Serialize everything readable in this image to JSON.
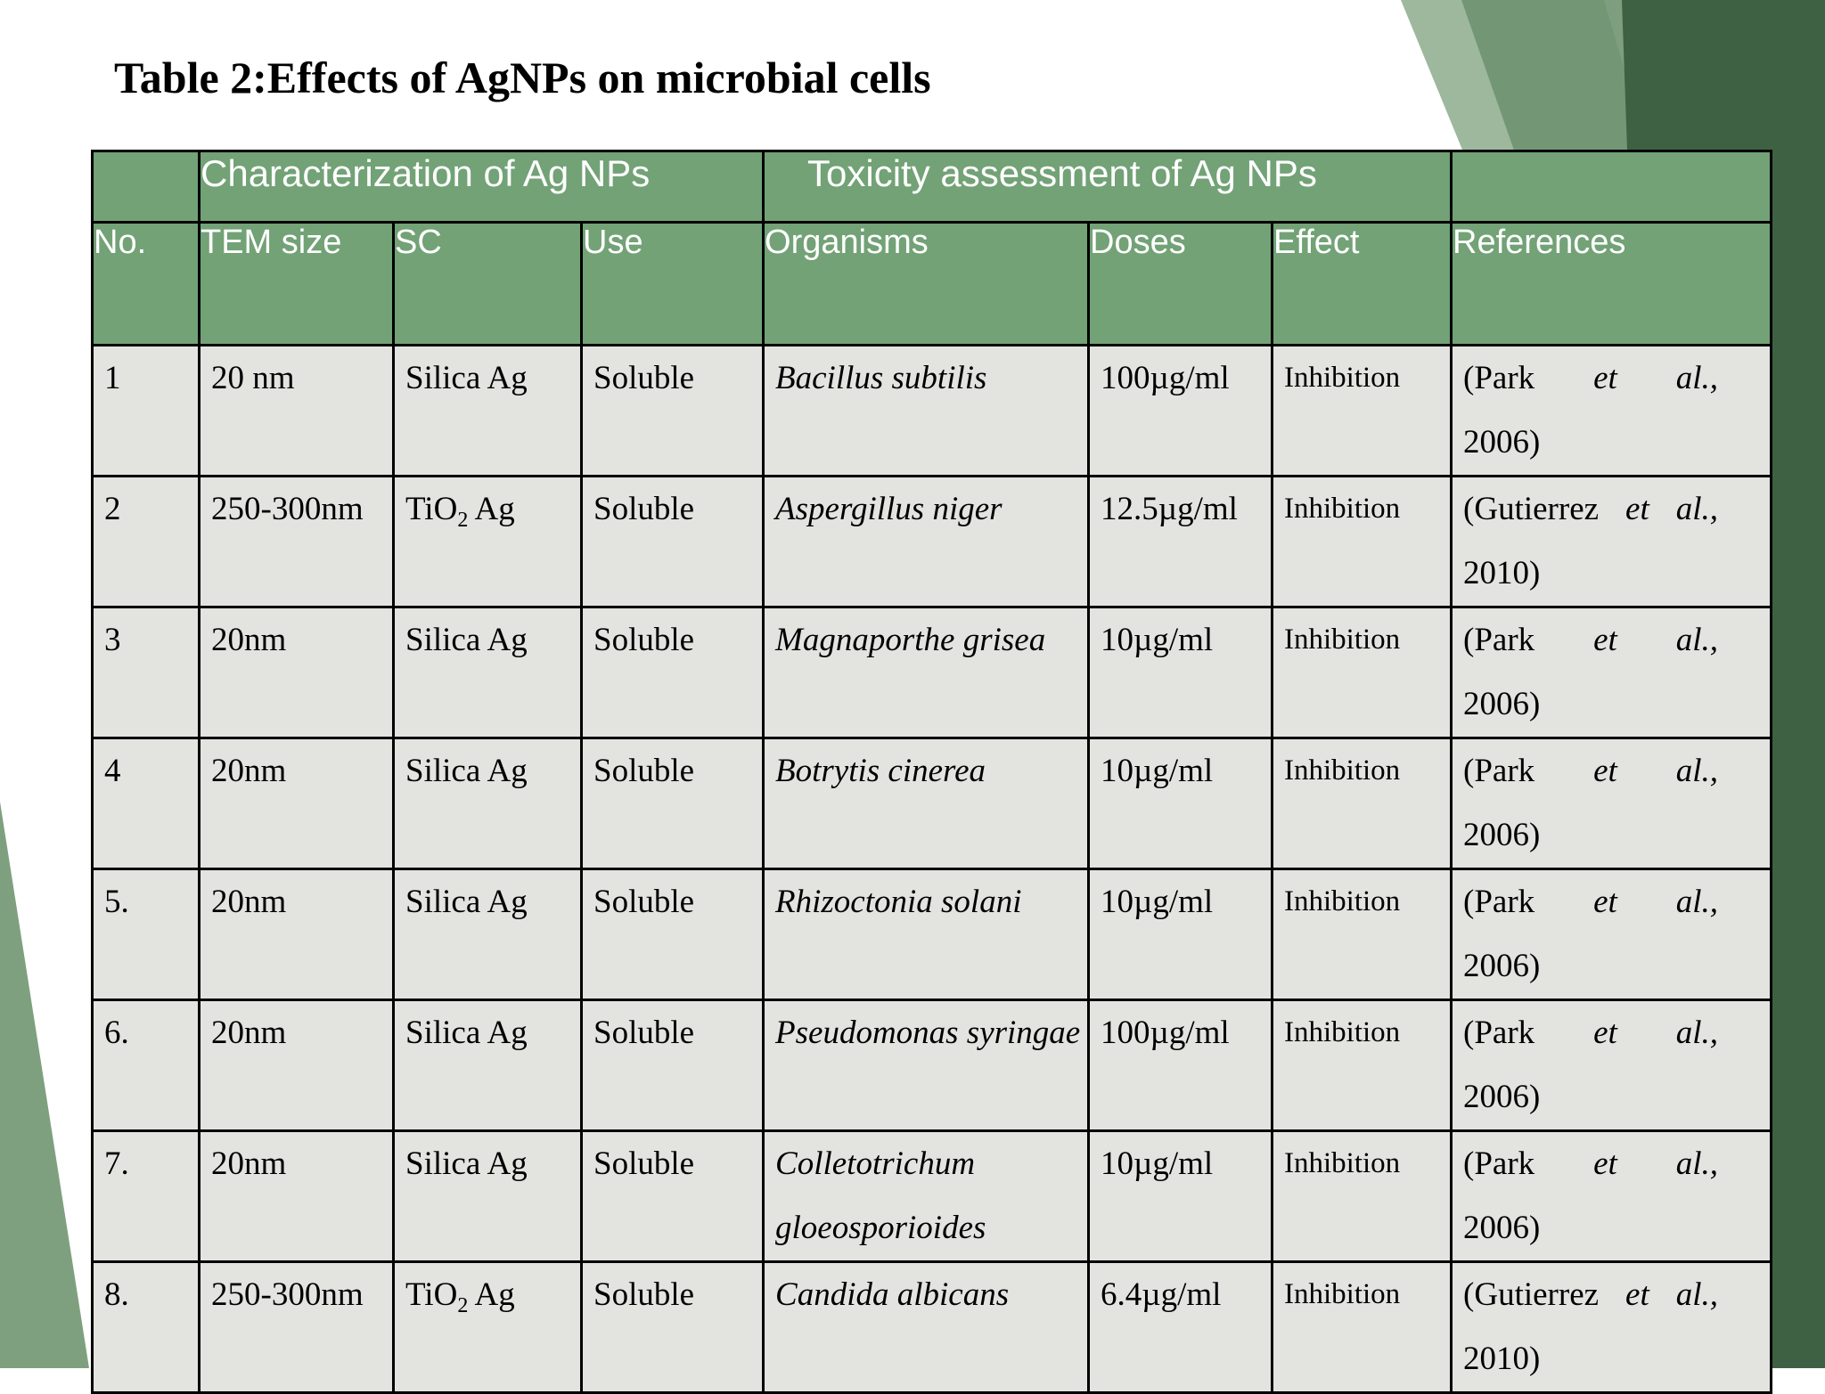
{
  "title": "Table 2:Effects of AgNPs on microbial cells",
  "colors": {
    "header_green": "#72a276",
    "body_gray": "#e3e3e0",
    "deco_dark": "#3f6143",
    "deco_mid": "#6f9471",
    "deco_light": "#9db89d"
  },
  "table": {
    "groups": {
      "characterization": "Characterization of Ag NPs",
      "toxicity": "Toxicity assessment of Ag NPs"
    },
    "headers": {
      "no": "No.",
      "tem_size": "TEM size",
      "sc": "SC",
      "use": "Use",
      "organisms": "Organisms",
      "doses": "Doses",
      "effect": "Effect",
      "references": "References"
    },
    "rows": [
      {
        "no": "1",
        "tem": "20 nm",
        "sc": "Silica Ag",
        "sc_sub": "",
        "sc_tail": "",
        "use": "Soluble",
        "organism": "Bacillus subtilis",
        "dose": "100µg/ml",
        "effect": "Inhibition",
        "ref_a": "(Park",
        "ref_b": "et",
        "ref_c": "al.,",
        "ref_year": "2006)"
      },
      {
        "no": "2",
        "tem": "250-300nm",
        "sc": "TiO",
        "sc_sub": "2",
        "sc_tail": " Ag",
        "use": "Soluble",
        "organism": "Aspergillus niger",
        "dose": "12.5µg/ml",
        "effect": "Inhibition",
        "ref_a": "(Gutierrez",
        "ref_b": "et",
        "ref_c": "al.,",
        "ref_year": "2010)"
      },
      {
        "no": "3",
        "tem": "20nm",
        "sc": "Silica Ag",
        "sc_sub": "",
        "sc_tail": "",
        "use": "Soluble",
        "organism": "Magnaporthe grisea",
        "dose": "10µg/ml",
        "effect": "Inhibition",
        "ref_a": "(Park",
        "ref_b": "et",
        "ref_c": "al.,",
        "ref_year": "2006)"
      },
      {
        "no": "4",
        "tem": "20nm",
        "sc": "Silica Ag",
        "sc_sub": "",
        "sc_tail": "",
        "use": "Soluble",
        "organism": "Botrytis cinerea",
        "dose": "10µg/ml",
        "effect": "Inhibition",
        "ref_a": "(Park",
        "ref_b": "et",
        "ref_c": "al.,",
        "ref_year": "2006)"
      },
      {
        "no": "5.",
        "tem": "20nm",
        "sc": "Silica Ag",
        "sc_sub": "",
        "sc_tail": "",
        "use": "Soluble",
        "organism": "Rhizoctonia solani",
        "dose": "10µg/ml",
        "effect": "Inhibition",
        "ref_a": "(Park",
        "ref_b": "et",
        "ref_c": "al.,",
        "ref_year": "2006)"
      },
      {
        "no": "6.",
        "tem": "20nm",
        "sc": "Silica Ag",
        "sc_sub": "",
        "sc_tail": "",
        "use": "Soluble",
        "organism": "Pseudomonas syringae",
        "dose": "100µg/ml",
        "effect": "Inhibition",
        "ref_a": "(Park",
        "ref_b": "et",
        "ref_c": "al.,",
        "ref_year": "2006)"
      },
      {
        "no": "7.",
        "tem": "20nm",
        "sc": "Silica Ag",
        "sc_sub": "",
        "sc_tail": "",
        "use": "Soluble",
        "organism": "Colletotrichum gloeosporioides",
        "dose": "10µg/ml",
        "effect": "Inhibition",
        "ref_a": "(Park",
        "ref_b": "et",
        "ref_c": "al.,",
        "ref_year": "2006)"
      },
      {
        "no": "8.",
        "tem": "250-300nm",
        "sc": "TiO",
        "sc_sub": "2",
        "sc_tail": " Ag",
        "use": "Soluble",
        "organism": "Candida albicans",
        "dose": "6.4µg/ml",
        "effect": "Inhibition",
        "ref_a": "(Gutierrez",
        "ref_b": "et",
        "ref_c": "al.,",
        "ref_year": "2010)"
      }
    ]
  }
}
